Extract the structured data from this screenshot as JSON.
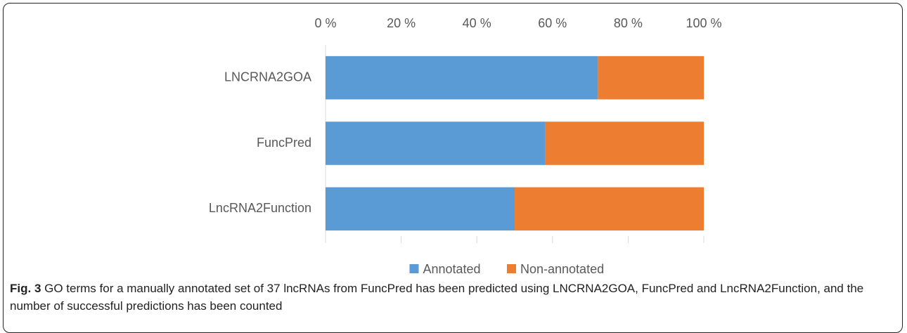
{
  "chart_data": {
    "type": "stacked-bar-horizontal",
    "categories": [
      "LNCRNA2GOA",
      "FuncPred",
      "LncRNA2Function"
    ],
    "series": [
      {
        "name": "Annotated",
        "color": "#5b9bd5",
        "values": [
          72,
          58,
          50
        ]
      },
      {
        "name": "Non-annotated",
        "color": "#ed7d31",
        "values": [
          28,
          42,
          50
        ]
      }
    ],
    "xlim": [
      0,
      100
    ],
    "xticks": [
      {
        "value": 0,
        "label": "0 %"
      },
      {
        "value": 20,
        "label": "20 %"
      },
      {
        "value": 40,
        "label": "40 %"
      },
      {
        "value": 60,
        "label": "60 %"
      },
      {
        "value": 80,
        "label": "80 %"
      },
      {
        "value": 100,
        "label": "100 %"
      }
    ],
    "legend": "bottom"
  },
  "caption": {
    "label": "Fig. 3",
    "text": "GO terms for a manually annotated set of 37 lncRNAs from FuncPred has been predicted using LNCRNA2GOA, FuncPred and LncRNA2Function, and the number of successful predictions has been counted"
  }
}
